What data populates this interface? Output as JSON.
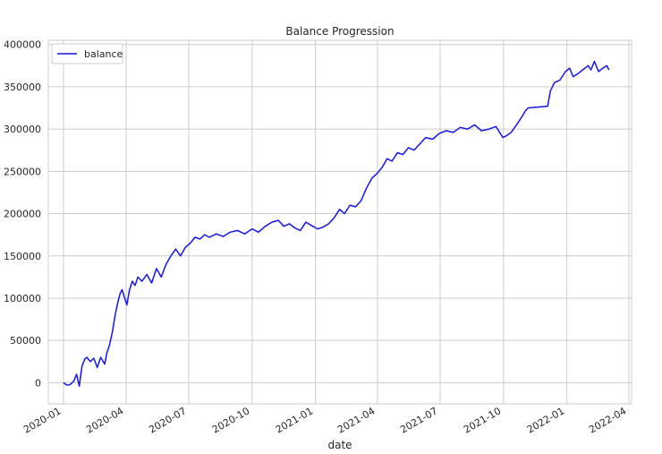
{
  "chart_data": {
    "type": "line",
    "title": "Balance Progression",
    "xlabel": "date",
    "ylabel": "",
    "ylim": [
      -25000,
      405000
    ],
    "xlim": [
      "2019-12-10",
      "2022-04-05"
    ],
    "grid": true,
    "legend": {
      "placement": "top-left"
    },
    "x_ticks": [
      "2020-01",
      "2020-04",
      "2020-07",
      "2020-10",
      "2021-01",
      "2021-04",
      "2021-07",
      "2021-10",
      "2022-01",
      "2022-04"
    ],
    "y_ticks": [
      0,
      50000,
      100000,
      150000,
      200000,
      250000,
      300000,
      350000,
      400000
    ],
    "colors": {
      "balance": "#1515e8"
    },
    "series": [
      {
        "name": "balance",
        "x": [
          "2020-01-01",
          "2020-01-06",
          "2020-01-11",
          "2020-01-16",
          "2020-01-20",
          "2020-01-24",
          "2020-01-28",
          "2020-02-01",
          "2020-02-04",
          "2020-02-09",
          "2020-02-14",
          "2020-02-19",
          "2020-02-24",
          "2020-03-01",
          "2020-03-04",
          "2020-03-08",
          "2020-03-12",
          "2020-03-16",
          "2020-03-20",
          "2020-03-23",
          "2020-03-26",
          "2020-03-30",
          "2020-04-02",
          "2020-04-06",
          "2020-04-10",
          "2020-04-14",
          "2020-04-18",
          "2020-04-24",
          "2020-05-01",
          "2020-05-08",
          "2020-05-15",
          "2020-05-22",
          "2020-05-29",
          "2020-06-05",
          "2020-06-12",
          "2020-06-19",
          "2020-06-26",
          "2020-07-03",
          "2020-07-10",
          "2020-07-17",
          "2020-07-24",
          "2020-07-31",
          "2020-08-10",
          "2020-08-20",
          "2020-08-30",
          "2020-09-10",
          "2020-09-20",
          "2020-10-01",
          "2020-10-10",
          "2020-10-20",
          "2020-10-30",
          "2020-11-08",
          "2020-11-16",
          "2020-11-24",
          "2020-12-02",
          "2020-12-10",
          "2020-12-18",
          "2020-12-26",
          "2021-01-04",
          "2021-01-12",
          "2021-01-20",
          "2021-01-28",
          "2021-02-05",
          "2021-02-12",
          "2021-02-20",
          "2021-02-28",
          "2021-03-08",
          "2021-03-16",
          "2021-03-24",
          "2021-04-01",
          "2021-04-08",
          "2021-04-15",
          "2021-04-22",
          "2021-04-30",
          "2021-05-08",
          "2021-05-16",
          "2021-05-24",
          "2021-06-01",
          "2021-06-10",
          "2021-06-20",
          "2021-06-30",
          "2021-07-10",
          "2021-07-20",
          "2021-07-30",
          "2021-08-10",
          "2021-08-20",
          "2021-08-30",
          "2021-09-10",
          "2021-09-20",
          "2021-09-30",
          "2021-10-05",
          "2021-10-12",
          "2021-10-20",
          "2021-10-28",
          "2021-11-02",
          "2021-11-06",
          "2021-12-04",
          "2021-12-08",
          "2021-12-14",
          "2021-12-22",
          "2021-12-30",
          "2022-01-05",
          "2022-01-10",
          "2022-01-16",
          "2022-01-24",
          "2022-02-01",
          "2022-02-05",
          "2022-02-10",
          "2022-02-16",
          "2022-02-22",
          "2022-02-28",
          "2022-03-03"
        ],
        "values": [
          0,
          -3000,
          -2000,
          2000,
          10000,
          -4000,
          20000,
          28000,
          30000,
          25000,
          29000,
          18000,
          30000,
          22000,
          35000,
          45000,
          60000,
          80000,
          95000,
          105000,
          110000,
          100000,
          92000,
          110000,
          120000,
          115000,
          125000,
          120000,
          128000,
          118000,
          135000,
          125000,
          140000,
          150000,
          158000,
          150000,
          160000,
          165000,
          172000,
          170000,
          175000,
          172000,
          176000,
          173000,
          178000,
          180000,
          176000,
          182000,
          178000,
          185000,
          190000,
          192000,
          185000,
          188000,
          183000,
          180000,
          190000,
          186000,
          182000,
          184000,
          188000,
          195000,
          205000,
          200000,
          210000,
          208000,
          215000,
          230000,
          242000,
          248000,
          255000,
          265000,
          262000,
          272000,
          270000,
          278000,
          275000,
          282000,
          290000,
          288000,
          295000,
          298000,
          296000,
          302000,
          300000,
          305000,
          298000,
          300000,
          303000,
          290000,
          292000,
          296000,
          305000,
          315000,
          322000,
          325000,
          327000,
          345000,
          355000,
          358000,
          368000,
          372000,
          362000,
          365000,
          370000,
          375000,
          370000,
          380000,
          368000,
          372000,
          375000,
          370000
        ]
      }
    ]
  }
}
